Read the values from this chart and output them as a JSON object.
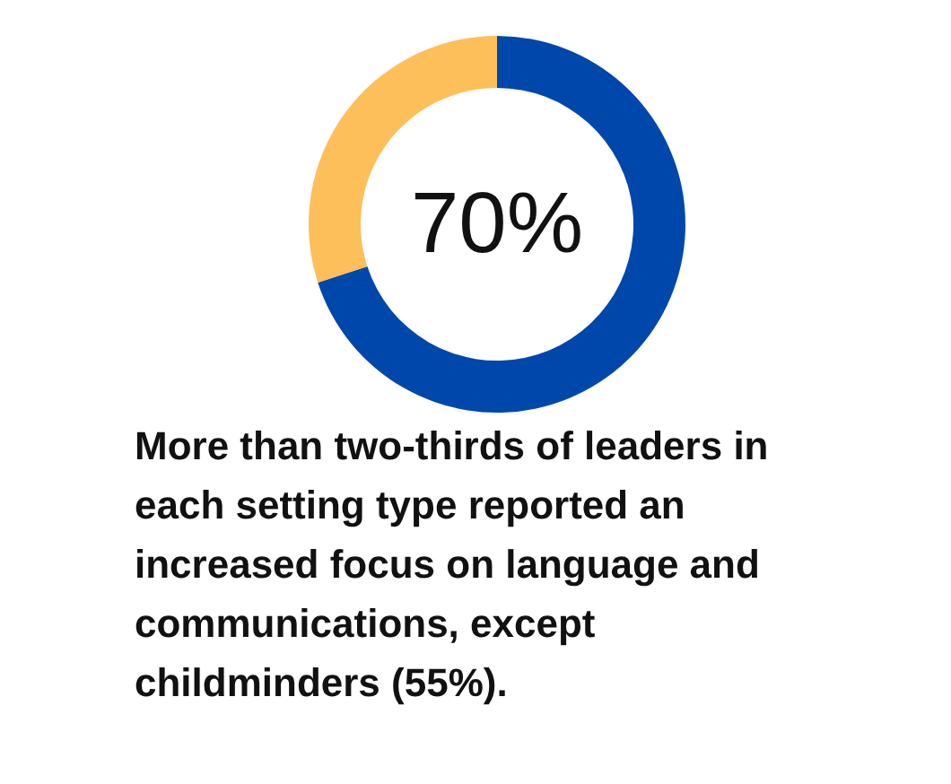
{
  "chart_data": {
    "type": "donut",
    "categories": [
      null,
      null
    ],
    "values": [
      70,
      30
    ],
    "colors": [
      "#0047ab",
      "#fdbf5a"
    ],
    "value_labels": [
      "70%",
      null
    ],
    "annotations": [
      "More than two-thirds of leaders in each setting type reported an increased focus on language and communications, except childminders (55%)."
    ]
  }
}
